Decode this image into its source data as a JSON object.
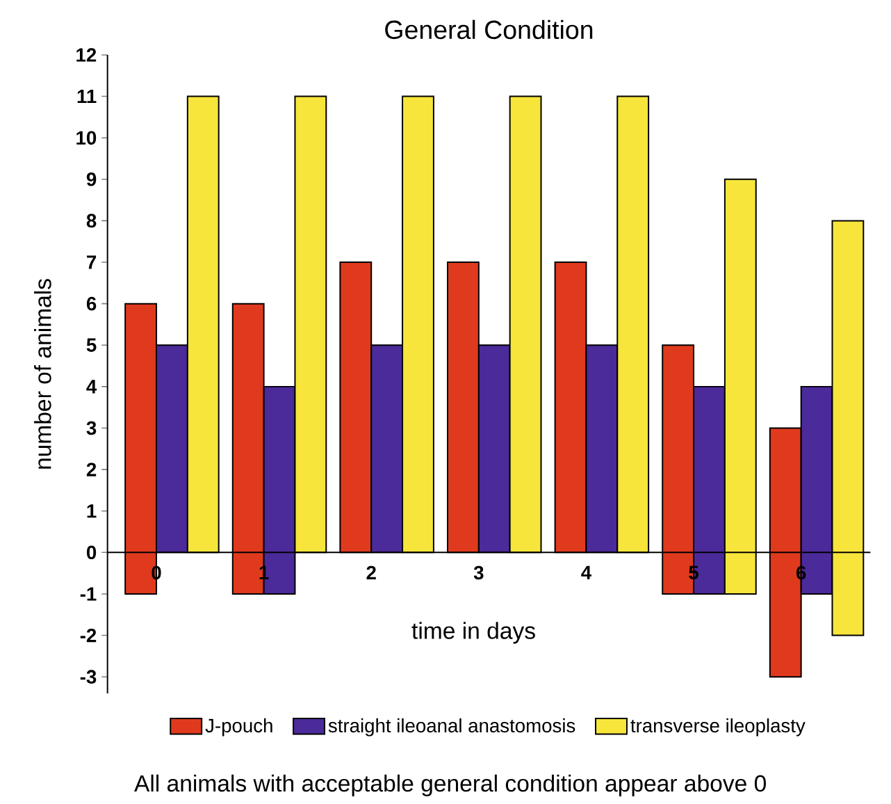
{
  "chart_data": {
    "type": "bar",
    "title": "General Condition",
    "xlabel": "time in days",
    "ylabel": "number of animals",
    "categories": [
      "0",
      "1",
      "2",
      "3",
      "4",
      "5",
      "6"
    ],
    "series": [
      {
        "name": "J-pouch",
        "color": "#e03a1e",
        "base": [
          -1,
          -1,
          0,
          0,
          0,
          -1,
          -3
        ],
        "values": [
          7,
          7,
          7,
          7,
          7,
          6,
          6
        ]
      },
      {
        "name": "straight ileoanal anastomosis",
        "color": "#4b2a9a",
        "base": [
          0,
          -1,
          0,
          0,
          0,
          -1,
          -1
        ],
        "values": [
          5,
          5,
          5,
          5,
          5,
          5,
          5
        ]
      },
      {
        "name": "transverse ileoplasty",
        "color": "#f7e53b",
        "base": [
          0,
          0,
          0,
          0,
          0,
          -1,
          -2
        ],
        "values": [
          11,
          11,
          11,
          11,
          11,
          10,
          10
        ]
      }
    ],
    "ylim": [
      -3.4,
      12
    ],
    "yticks": [
      -3,
      -2,
      -1,
      0,
      1,
      2,
      3,
      4,
      5,
      6,
      7,
      8,
      9,
      10,
      11,
      12
    ],
    "legend": "bottom",
    "annotations": [
      "All animals with acceptable general condition appear above 0"
    ]
  }
}
